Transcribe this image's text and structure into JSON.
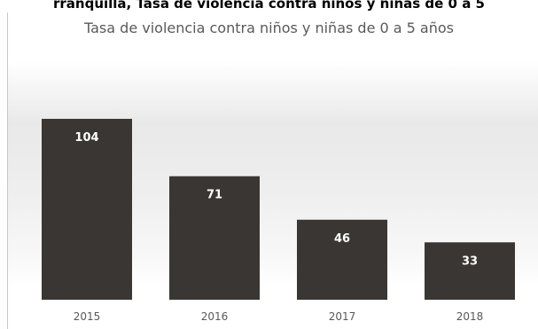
{
  "page": {
    "cut_title": "rranquilla, Tasa de violencia contra niños y niñas de 0 a 5"
  },
  "colors": {
    "bar": "#3a3633",
    "label": "#ffffff",
    "axis_text": "#595959"
  },
  "chart_data": {
    "type": "bar",
    "title": "Tasa de violencia contra niños y niñas de 0 a 5 años",
    "categories": [
      "2015",
      "2016",
      "2017",
      "2018"
    ],
    "values": [
      104,
      71,
      46,
      33
    ],
    "data_labels": [
      "104",
      "71",
      "46",
      "33"
    ],
    "xlabel": "",
    "ylabel": "",
    "ylim": [
      0,
      104
    ],
    "grid": false,
    "legend": "none",
    "value_axis_visible": false
  }
}
